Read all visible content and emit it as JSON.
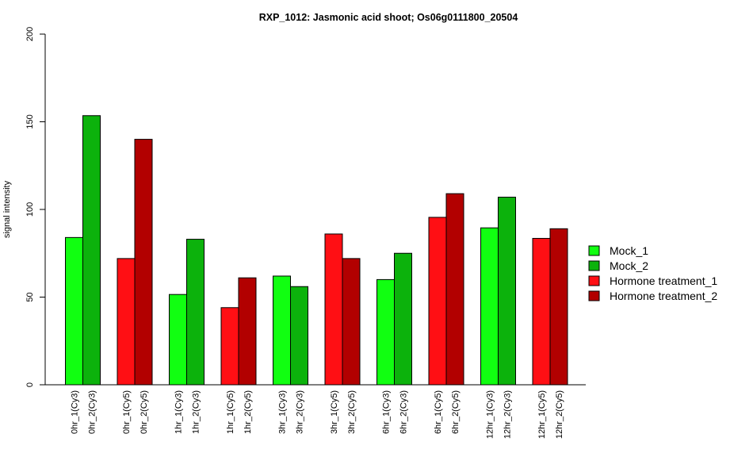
{
  "chart_data": {
    "type": "bar",
    "title": "RXP_1012: Jasmonic acid shoot; Os06g0111800_20504",
    "ylabel": "signal intensity",
    "xlabel": "",
    "ylim": [
      0,
      200
    ],
    "yticks": [
      0,
      50,
      100,
      150,
      200
    ],
    "grid": false,
    "legend_position": "right",
    "series": [
      {
        "name": "Mock_1",
        "color": "#11ff11"
      },
      {
        "name": "Mock_2",
        "color": "#0cb20c"
      },
      {
        "name": "Hormone treatment_1",
        "color": "#ff0f14"
      },
      {
        "name": "Hormone treatment_2",
        "color": "#b20000"
      }
    ],
    "bars": [
      {
        "label": "0hr_1(Cy3)",
        "value": 84,
        "series": 0
      },
      {
        "label": "0hr_2(Cy3)",
        "value": 153.5,
        "series": 1
      },
      {
        "label": "0hr_1(Cy5)",
        "value": 72,
        "series": 2
      },
      {
        "label": "0hr_2(Cy5)",
        "value": 140,
        "series": 3
      },
      {
        "label": "1hr_1(Cy3)",
        "value": 51.5,
        "series": 0
      },
      {
        "label": "1hr_2(Cy3)",
        "value": 83,
        "series": 1
      },
      {
        "label": "1hr_1(Cy5)",
        "value": 44,
        "series": 2
      },
      {
        "label": "1hr_2(Cy5)",
        "value": 61,
        "series": 3
      },
      {
        "label": "3hr_1(Cy3)",
        "value": 62,
        "series": 0
      },
      {
        "label": "3hr_2(Cy3)",
        "value": 56,
        "series": 1
      },
      {
        "label": "3hr_1(Cy5)",
        "value": 86,
        "series": 2
      },
      {
        "label": "3hr_2(Cy5)",
        "value": 72,
        "series": 3
      },
      {
        "label": "6hr_1(Cy3)",
        "value": 60,
        "series": 0
      },
      {
        "label": "6hr_2(Cy3)",
        "value": 75,
        "series": 1
      },
      {
        "label": "6hr_1(Cy5)",
        "value": 95.5,
        "series": 2
      },
      {
        "label": "6hr_2(Cy5)",
        "value": 109,
        "series": 3
      },
      {
        "label": "12hr_1(Cy3)",
        "value": 89.5,
        "series": 0
      },
      {
        "label": "12hr_2(Cy3)",
        "value": 107,
        "series": 1
      },
      {
        "label": "12hr_1(Cy5)",
        "value": 83.5,
        "series": 2
      },
      {
        "label": "12hr_2(Cy5)",
        "value": 89,
        "series": 3
      }
    ]
  }
}
